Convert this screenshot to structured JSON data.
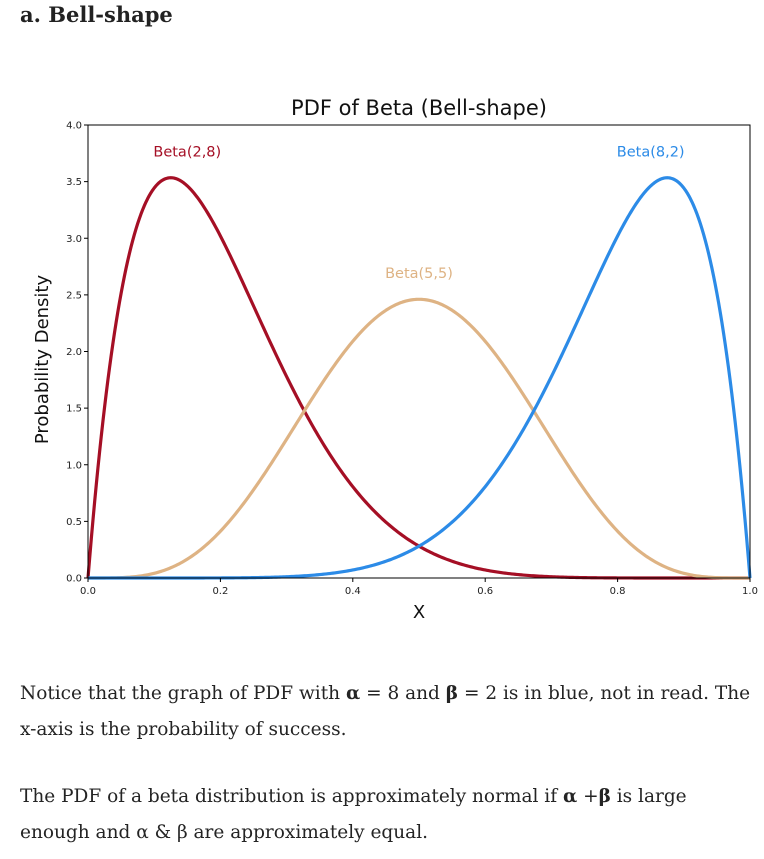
{
  "section": {
    "heading": "a. Bell-shape"
  },
  "chart_data": {
    "type": "line",
    "title": "PDF of Beta (Bell-shape)",
    "xlabel": "X",
    "ylabel": "Probability Density",
    "xlim": [
      0,
      1
    ],
    "ylim": [
      0,
      4
    ],
    "x_ticks": [
      "0.0",
      "0.2",
      "0.4",
      "0.6",
      "0.8",
      "1.0"
    ],
    "y_ticks": [
      "0.0",
      "0.5",
      "1.0",
      "1.5",
      "2.0",
      "2.5",
      "3.0",
      "3.5",
      "4.0"
    ],
    "grid": false,
    "legend": "none",
    "series": [
      {
        "name": "Beta(2,8)",
        "alpha": 2,
        "beta": 8,
        "color": "#a50f25",
        "label_x": 0.15,
        "label_y": 3.72
      },
      {
        "name": "Beta(5,5)",
        "alpha": 5,
        "beta": 5,
        "color": "#deb384",
        "label_x": 0.5,
        "label_y": 2.65
      },
      {
        "name": "Beta(8,2)",
        "alpha": 8,
        "beta": 2,
        "color": "#2c8be7",
        "label_x": 0.85,
        "label_y": 3.72
      }
    ]
  },
  "paragraphs": {
    "p1_prefix": "Notice that the graph of PDF with ",
    "p1_alpha_sym": "α",
    "p1_alpha_val": " = 8 and ",
    "p1_beta_sym": "β",
    "p1_suffix": " = 2 is in blue, not in read. The x-axis is the probability of success.",
    "p2_prefix": "The PDF of a beta distribution is approximately normal if ",
    "p2_alpha_sym": "α",
    "p2_plus": " +",
    "p2_beta_sym": "β",
    "p2_suffix": " is large enough and α & β are approximately equal."
  }
}
